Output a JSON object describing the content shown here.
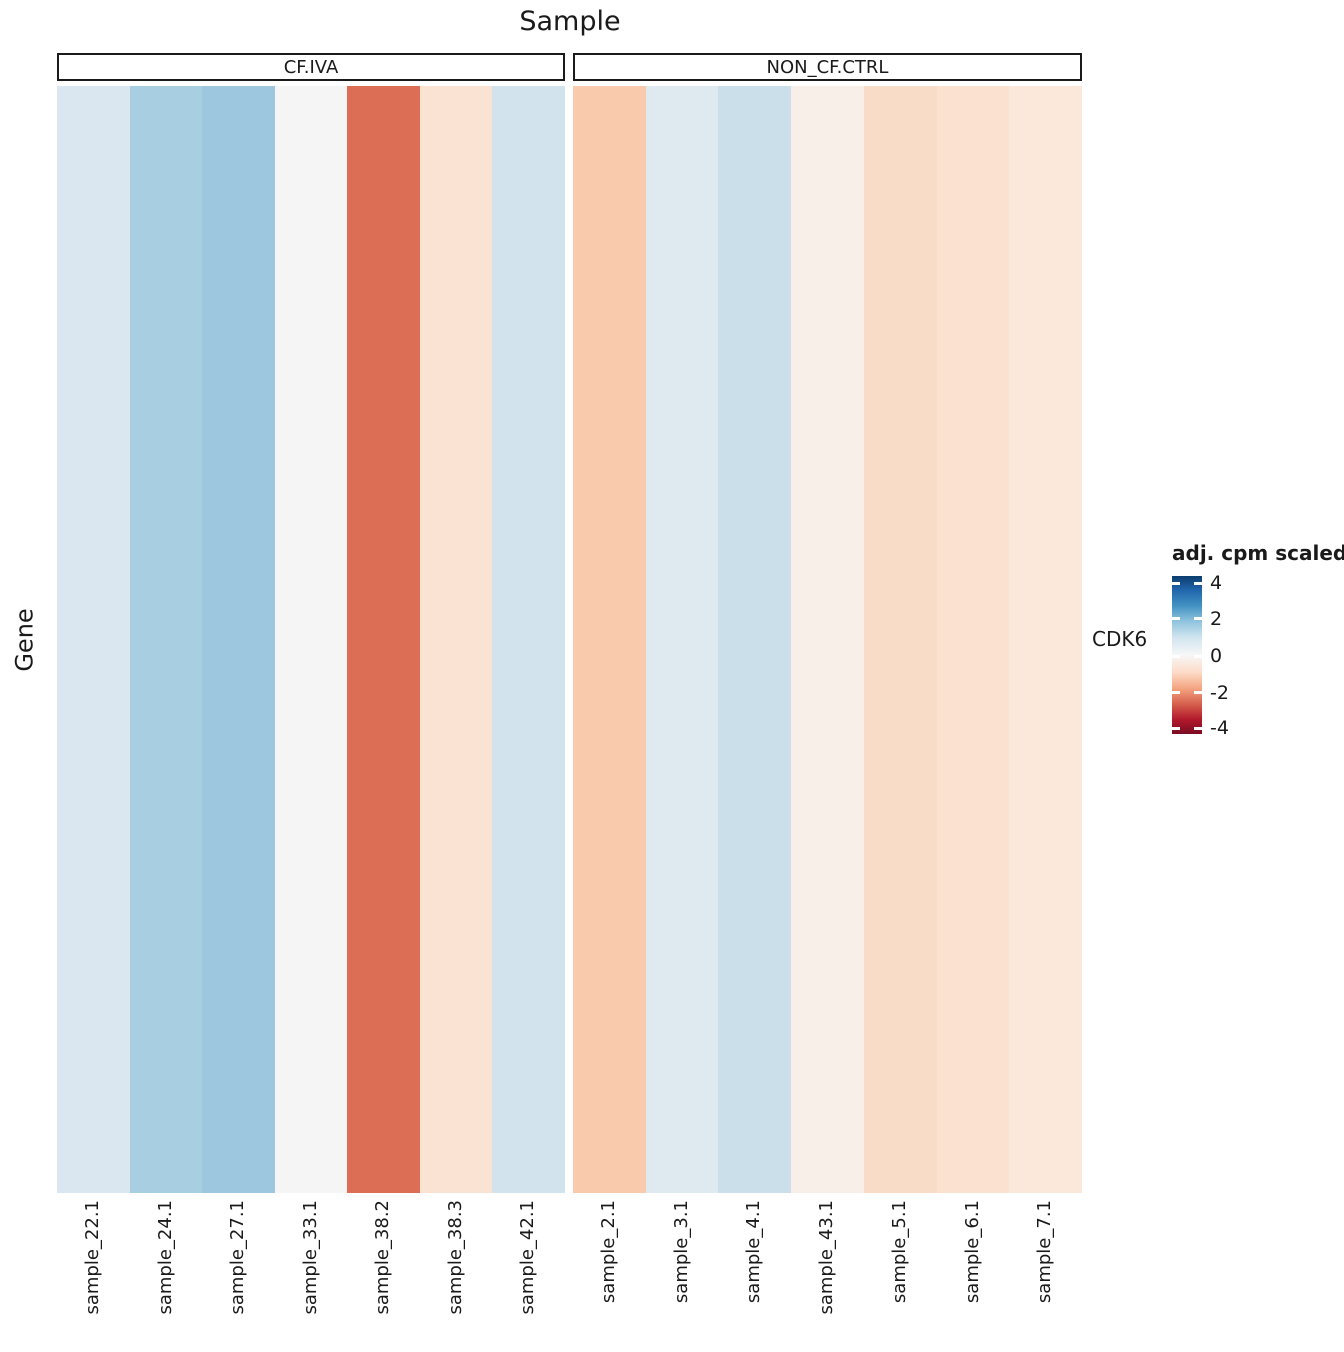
{
  "title": "Sample",
  "y_axis_title": "Gene",
  "row_label": "CDK6",
  "facets": [
    {
      "label": "CF.IVA",
      "columns": [
        {
          "sample": "sample_22.1",
          "color": "#dbe7f0",
          "value": 0.7
        },
        {
          "sample": "sample_24.1",
          "color": "#a8cee2",
          "value": 1.5
        },
        {
          "sample": "sample_27.1",
          "color": "#9cc7de",
          "value": 1.7
        },
        {
          "sample": "sample_33.1",
          "color": "#f5f5f5",
          "value": 0.0
        },
        {
          "sample": "sample_38.2",
          "color": "#dc6e55",
          "value": -2.5
        },
        {
          "sample": "sample_38.3",
          "color": "#fae3d2",
          "value": -0.6
        },
        {
          "sample": "sample_42.1",
          "color": "#d2e3ee",
          "value": 0.9
        }
      ]
    },
    {
      "label": "NON_CF.CTRL",
      "columns": [
        {
          "sample": "sample_2.1",
          "color": "#f9caab",
          "value": -1.3
        },
        {
          "sample": "sample_3.1",
          "color": "#dfe9f0",
          "value": 0.6
        },
        {
          "sample": "sample_4.1",
          "color": "#cbdfeb",
          "value": 1.0
        },
        {
          "sample": "sample_43.1",
          "color": "#f8efe9",
          "value": -0.2
        },
        {
          "sample": "sample_5.1",
          "color": "#f9dcc8",
          "value": -0.9
        },
        {
          "sample": "sample_6.1",
          "color": "#fae1d0",
          "value": -0.7
        },
        {
          "sample": "sample_7.1",
          "color": "#fbe8db",
          "value": -0.5
        }
      ]
    }
  ],
  "legend": {
    "title": "adj. cpm scaled",
    "ticks": [
      "4",
      "2",
      "0",
      "-2",
      "-4"
    ]
  },
  "chart_data": {
    "type": "heatmap",
    "title": "Sample",
    "xlabel": "Sample",
    "ylabel": "Gene",
    "rows": [
      "CDK6"
    ],
    "column_groups": [
      {
        "group": "CF.IVA",
        "samples": [
          "sample_22.1",
          "sample_24.1",
          "sample_27.1",
          "sample_33.1",
          "sample_38.2",
          "sample_38.3",
          "sample_42.1"
        ],
        "values": [
          [
            0.7,
            1.5,
            1.7,
            0.0,
            -2.5,
            -0.6,
            0.9
          ]
        ]
      },
      {
        "group": "NON_CF.CTRL",
        "samples": [
          "sample_2.1",
          "sample_3.1",
          "sample_4.1",
          "sample_43.1",
          "sample_5.1",
          "sample_6.1",
          "sample_7.1"
        ],
        "values": [
          [
            -1.3,
            0.6,
            1.0,
            -0.2,
            -0.9,
            -0.7,
            -0.5
          ]
        ]
      }
    ],
    "colorbar": {
      "label": "adj. cpm scaled",
      "ticks": [
        4,
        2,
        0,
        -2,
        -4
      ],
      "range": [
        -4.35,
        4.35
      ],
      "palette": "RdBu",
      "high_color": "#053061",
      "mid_color": "#f7f7f7",
      "low_color": "#67001f"
    },
    "legend_position": "right",
    "grid": false
  }
}
